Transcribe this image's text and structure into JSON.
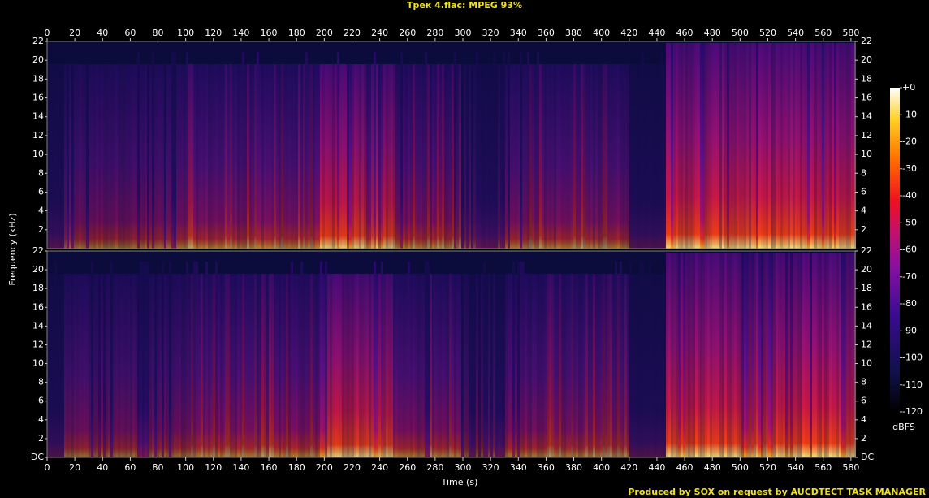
{
  "chart_data": {
    "type": "spectrogram",
    "title": "Трек 4.flac: MPEG 93%",
    "xlabel": "Time (s)",
    "ylabel": "Frequency (kHz)",
    "xlim": [
      0,
      583
    ],
    "xticks": [
      0,
      20,
      40,
      60,
      80,
      100,
      120,
      140,
      160,
      180,
      200,
      220,
      240,
      260,
      280,
      300,
      320,
      340,
      360,
      380,
      400,
      420,
      440,
      460,
      480,
      500,
      520,
      540,
      560,
      580
    ],
    "ylim": [
      0,
      22
    ],
    "channels": [
      {
        "yticks": [
          2,
          4,
          6,
          8,
          10,
          12,
          14,
          16,
          18,
          20,
          22
        ]
      },
      {
        "yticks": [
          {
            "value": 0,
            "label": "DC"
          },
          2,
          4,
          6,
          8,
          10,
          12,
          14,
          16,
          18,
          20,
          22
        ]
      }
    ],
    "colorbar": {
      "label": "dBFS",
      "lim": [
        -120,
        0
      ],
      "ticks": [
        {
          "value": 0,
          "label": "+0"
        },
        -10,
        -20,
        -30,
        -40,
        -50,
        -60,
        -70,
        -80,
        -90,
        -100,
        -110,
        -120
      ]
    },
    "footer": "Produced by SOX on request by AUCDTECT TASK MANAGER"
  }
}
